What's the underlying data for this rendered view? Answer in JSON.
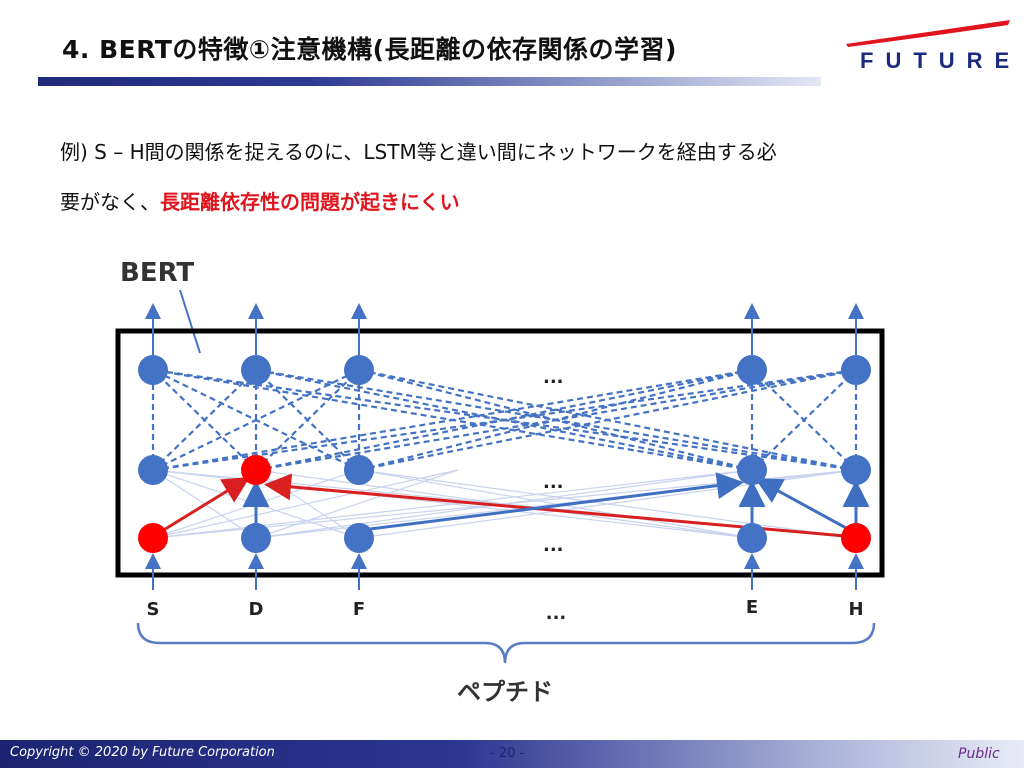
{
  "slide": {
    "title": "4. BERTの特徴①注意機構(長距離の依存関係の学習)",
    "logo_text": "FUTURE",
    "body_line1": "例) S – H間の関係を捉えるのに、LSTM等と違い間にネットワークを経由する必",
    "body_line2_plain": "要がなく、",
    "body_line2_highlight": "長距離依存性の問題が起きにくい"
  },
  "diagram": {
    "model_label": "BERT",
    "ellipsis": "...",
    "tokens": [
      "S",
      "D",
      "F",
      "...",
      "E",
      "H"
    ],
    "brace_label": "ペプチド",
    "colors": {
      "node": "#4472c4",
      "highlight_node": "#ff0000",
      "red_arrow": "#d92020",
      "blue_arrow": "#3f6fc0"
    }
  },
  "footer": {
    "copyright": "Copyright © 2020 by Future Corporation",
    "page": "- 20 -",
    "classification": "Public"
  }
}
